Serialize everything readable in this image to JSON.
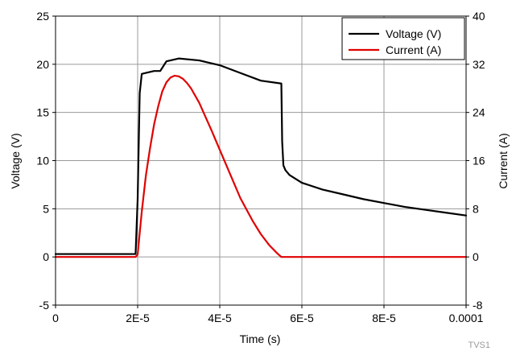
{
  "chart_data": {
    "type": "line",
    "xlabel": "Time (s)",
    "ylabel": "Voltage (V)",
    "y2label": "Current (A)",
    "xlim": [
      0,
      0.0001
    ],
    "ylim": [
      -5,
      25
    ],
    "y2lim": [
      -8,
      40
    ],
    "grid": true,
    "legend_position": "top-right",
    "x_ticks": [
      {
        "value": 0,
        "label": "0"
      },
      {
        "value": 2e-05,
        "label": "2E-5"
      },
      {
        "value": 4e-05,
        "label": "4E-5"
      },
      {
        "value": 6e-05,
        "label": "6E-5"
      },
      {
        "value": 8e-05,
        "label": "8E-5"
      },
      {
        "value": 0.0001,
        "label": "0.0001"
      }
    ],
    "y_ticks": [
      {
        "value": -5,
        "label": "-5"
      },
      {
        "value": 0,
        "label": "0"
      },
      {
        "value": 5,
        "label": "5"
      },
      {
        "value": 10,
        "label": "10"
      },
      {
        "value": 15,
        "label": "15"
      },
      {
        "value": 20,
        "label": "20"
      },
      {
        "value": 25,
        "label": "25"
      }
    ],
    "y2_ticks": [
      {
        "value": -8,
        "label": "-8"
      },
      {
        "value": 0,
        "label": "0"
      },
      {
        "value": 8,
        "label": "8"
      },
      {
        "value": 16,
        "label": "16"
      },
      {
        "value": 24,
        "label": "24"
      },
      {
        "value": 32,
        "label": "32"
      },
      {
        "value": 40,
        "label": "40"
      }
    ],
    "series": [
      {
        "name": "Voltage (V)",
        "axis": "left",
        "color": "#000000",
        "x": [
          0,
          5e-06,
          1e-05,
          1.5e-05,
          1.95e-05,
          2e-05,
          2.05e-05,
          2.1e-05,
          2.2e-05,
          2.4e-05,
          2.55e-05,
          2.7e-05,
          3e-05,
          3.5e-05,
          4e-05,
          4.5e-05,
          5e-05,
          5.5e-05,
          5.52e-05,
          5.55e-05,
          5.6e-05,
          5.7e-05,
          6e-05,
          6.5e-05,
          7e-05,
          7.5e-05,
          8e-05,
          8.5e-05,
          9e-05,
          9.5e-05,
          0.0001
        ],
        "y": [
          0.3,
          0.3,
          0.3,
          0.3,
          0.3,
          6.0,
          17.0,
          19.0,
          19.1,
          19.3,
          19.3,
          20.3,
          20.6,
          20.4,
          19.9,
          19.1,
          18.3,
          18.0,
          12.0,
          9.5,
          9.0,
          8.5,
          7.7,
          7.0,
          6.5,
          6.0,
          5.6,
          5.2,
          4.9,
          4.6,
          4.3
        ]
      },
      {
        "name": "Current (A)",
        "axis": "right",
        "color": "#e00000",
        "x": [
          0,
          1e-05,
          1.95e-05,
          2e-05,
          2.1e-05,
          2.2e-05,
          2.3e-05,
          2.4e-05,
          2.5e-05,
          2.6e-05,
          2.7e-05,
          2.8e-05,
          2.9e-05,
          3e-05,
          3.1e-05,
          3.2e-05,
          3.3e-05,
          3.5e-05,
          3.8e-05,
          4e-05,
          4.3e-05,
          4.5e-05,
          4.8e-05,
          5e-05,
          5.2e-05,
          5.4e-05,
          5.5e-05,
          6e-05,
          7e-05,
          8e-05,
          9e-05,
          0.0001
        ],
        "y": [
          0,
          0,
          0,
          0.4,
          7.5,
          13.5,
          18.0,
          22.0,
          25.0,
          27.5,
          29.0,
          29.8,
          30.1,
          30.0,
          29.6,
          28.9,
          28.0,
          25.6,
          21.0,
          17.8,
          13.0,
          9.8,
          6.0,
          3.8,
          2.0,
          0.6,
          0,
          0,
          0,
          0,
          0,
          0
        ]
      }
    ]
  },
  "watermark": "TVS1"
}
